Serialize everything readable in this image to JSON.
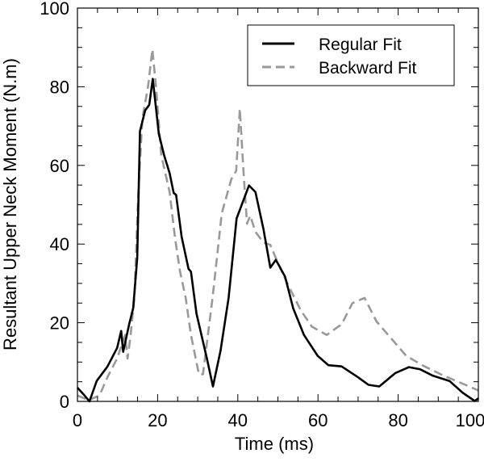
{
  "chart_data": {
    "type": "line",
    "title": "",
    "xlabel": "Time (ms)",
    "ylabel": "Resultant Upper Neck Moment (N.m)",
    "xlim": [
      0,
      100
    ],
    "ylim": [
      0,
      100
    ],
    "xticks": [
      0,
      20,
      40,
      60,
      80,
      100
    ],
    "yticks": [
      0,
      20,
      40,
      60,
      80,
      100
    ],
    "xtick_labels": [
      "0",
      "20",
      "40",
      "60",
      "80",
      "100"
    ],
    "ytick_labels": [
      "0",
      "20",
      "40",
      "60",
      "80",
      "100"
    ],
    "grid": false,
    "legend_position": "top-right",
    "series": [
      {
        "name": "Regular Fit",
        "color": "#000000",
        "style": "solid",
        "x": [
          0,
          1.5,
          3,
          4.8,
          7.5,
          9.9,
          10.9,
          11.4,
          12.9,
          13.9,
          14.9,
          15.6,
          16.9,
          17.9,
          18.8,
          20.3,
          21.6,
          23,
          24,
          24.6,
          26,
          27.7,
          28.3,
          29.7,
          32.3,
          33.8,
          35.7,
          37.7,
          39.7,
          42.8,
          44.4,
          46.4,
          48.1,
          49.5,
          51.8,
          53.8,
          56.5,
          59.9,
          62.6,
          65.9,
          69.9,
          72.6,
          75.3,
          79.3,
          82.7,
          85.4,
          88.7,
          92.8,
          96.1,
          99.1,
          100
        ],
        "y": [
          3.5,
          1.8,
          0,
          5.2,
          8.9,
          13.6,
          17.9,
          12.6,
          19.6,
          23.7,
          36.4,
          68.7,
          74,
          75.4,
          82,
          68,
          62.6,
          58,
          53,
          52.5,
          41.8,
          33.7,
          33,
          22.3,
          10.9,
          3.8,
          12.9,
          26.3,
          46.5,
          54.9,
          53.2,
          43.8,
          34,
          36,
          31.7,
          23.7,
          16.9,
          11.6,
          9.2,
          8.9,
          6.2,
          4.2,
          3.8,
          7.2,
          8.7,
          8.2,
          6.5,
          5.2,
          2.2,
          0.1,
          0.8
        ]
      },
      {
        "name": "Backward Fit",
        "color": "#999999",
        "style": "dashed",
        "x": [
          0,
          2.8,
          5.5,
          7.5,
          9.9,
          11.9,
          12.5,
          13.2,
          14.2,
          15.2,
          16.2,
          17.6,
          18.7,
          19.6,
          20.9,
          23,
          24.3,
          25.6,
          27,
          28.3,
          30.3,
          31.3,
          33.7,
          36,
          38.4,
          39.6,
          40.5,
          41.4,
          42.3,
          43.1,
          44.4,
          46.4,
          48.1,
          49.8,
          52.5,
          55.8,
          58.5,
          62.2,
          65.9,
          68.6,
          71.6,
          74.6,
          78,
          82,
          86,
          91.4,
          95.4,
          100
        ],
        "y": [
          1.5,
          0.3,
          1.5,
          6.2,
          10.9,
          16.9,
          10.9,
          16.3,
          26.3,
          53.2,
          72,
          80,
          89.5,
          80,
          62.6,
          53.2,
          41.8,
          33,
          26.3,
          16.9,
          6.9,
          6.9,
          26.3,
          47.8,
          56.5,
          58.6,
          74.4,
          58.6,
          45.2,
          47.2,
          43.1,
          40.4,
          39.8,
          35.7,
          29.7,
          23,
          19,
          16.9,
          19.6,
          25,
          26.3,
          20.3,
          16.3,
          11.6,
          9.2,
          6.5,
          4.8,
          2.8
        ]
      }
    ]
  }
}
